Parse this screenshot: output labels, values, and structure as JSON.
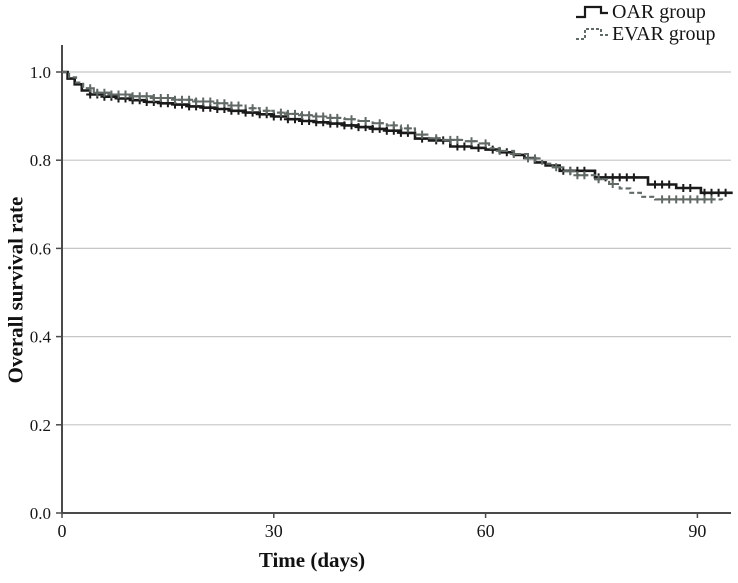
{
  "chart_data": {
    "type": "line",
    "subtype": "kaplan-meier-step-survival",
    "title": "",
    "xlabel": "Time (days)",
    "ylabel": "Overall survival rate",
    "xlim": [
      0,
      95
    ],
    "ylim": [
      0.0,
      1.0
    ],
    "grid": "horizontal-only",
    "legend_position": "top-right",
    "grid_color": "#c6c6c6",
    "axis_color": "#4a4a4a",
    "text_color": "#161616",
    "x_ticks": [
      {
        "value": 0,
        "label": "0"
      },
      {
        "value": 30,
        "label": "30"
      },
      {
        "value": 60,
        "label": "60"
      },
      {
        "value": 90,
        "label": "90"
      }
    ],
    "y_ticks": [
      {
        "value": 0.0,
        "label": "0.0"
      },
      {
        "value": 0.2,
        "label": "0.2"
      },
      {
        "value": 0.4,
        "label": "0.4"
      },
      {
        "value": 0.6,
        "label": "0.6"
      },
      {
        "value": 0.8,
        "label": "0.8"
      },
      {
        "value": 1.0,
        "label": "1.0"
      }
    ],
    "series": [
      {
        "name": "OAR group",
        "color": "#1a1a1a",
        "dash": "solid",
        "points": [
          [
            0,
            1.0
          ],
          [
            0.8,
            0.985
          ],
          [
            1.8,
            0.972
          ],
          [
            2.8,
            0.958
          ],
          [
            4,
            0.949
          ],
          [
            6,
            0.944
          ],
          [
            8,
            0.94
          ],
          [
            10,
            0.936
          ],
          [
            12,
            0.932
          ],
          [
            14,
            0.929
          ],
          [
            16,
            0.926
          ],
          [
            18,
            0.922
          ],
          [
            20,
            0.919
          ],
          [
            22,
            0.916
          ],
          [
            24,
            0.912
          ],
          [
            26,
            0.908
          ],
          [
            28,
            0.904
          ],
          [
            30,
            0.899
          ],
          [
            32,
            0.893
          ],
          [
            34,
            0.889
          ],
          [
            36,
            0.886
          ],
          [
            38,
            0.883
          ],
          [
            40,
            0.879
          ],
          [
            42,
            0.875
          ],
          [
            44,
            0.871
          ],
          [
            46,
            0.867
          ],
          [
            48,
            0.862
          ],
          [
            50,
            0.849
          ],
          [
            52,
            0.845
          ],
          [
            55,
            0.831
          ],
          [
            58,
            0.828
          ],
          [
            60,
            0.824
          ],
          [
            62,
            0.818
          ],
          [
            64,
            0.812
          ],
          [
            65.5,
            0.805
          ],
          [
            67,
            0.795
          ],
          [
            68.5,
            0.788
          ],
          [
            70.5,
            0.776
          ],
          [
            75.5,
            0.761
          ],
          [
            83,
            0.745
          ],
          [
            87,
            0.737
          ],
          [
            90.5,
            0.726
          ],
          [
            95,
            0.726
          ]
        ],
        "censor_days": [
          4,
          5,
          6,
          7,
          8,
          9,
          10,
          11,
          12,
          13,
          14,
          15,
          16,
          17,
          18,
          19,
          20,
          21,
          22,
          23,
          24,
          25,
          26,
          27,
          28,
          29,
          30,
          31,
          32,
          33,
          34,
          35,
          36,
          37,
          38,
          39,
          40,
          41,
          42,
          43,
          44,
          45,
          46,
          47,
          48,
          49,
          51,
          53,
          54,
          56,
          57,
          59,
          61,
          63,
          71,
          72,
          73,
          74,
          76,
          77,
          78,
          79,
          80,
          81,
          84,
          85,
          86,
          88,
          89,
          91,
          92,
          93,
          94
        ]
      },
      {
        "name": "EVAR group",
        "color": "#626a66",
        "dash": "dashed",
        "points": [
          [
            0,
            1.0
          ],
          [
            1,
            0.988
          ],
          [
            2,
            0.976
          ],
          [
            3,
            0.963
          ],
          [
            4.5,
            0.953
          ],
          [
            7,
            0.949
          ],
          [
            10,
            0.945
          ],
          [
            13,
            0.941
          ],
          [
            16,
            0.937
          ],
          [
            19,
            0.933
          ],
          [
            22,
            0.929
          ],
          [
            24,
            0.924
          ],
          [
            26,
            0.918
          ],
          [
            28,
            0.912
          ],
          [
            30,
            0.908
          ],
          [
            32,
            0.905
          ],
          [
            34,
            0.902
          ],
          [
            36,
            0.899
          ],
          [
            38,
            0.896
          ],
          [
            40,
            0.893
          ],
          [
            42,
            0.889
          ],
          [
            44,
            0.884
          ],
          [
            46,
            0.879
          ],
          [
            48,
            0.872
          ],
          [
            50,
            0.858
          ],
          [
            52,
            0.85
          ],
          [
            54,
            0.846
          ],
          [
            57,
            0.843
          ],
          [
            59,
            0.838
          ],
          [
            60.5,
            0.827
          ],
          [
            62,
            0.821
          ],
          [
            64,
            0.814
          ],
          [
            66,
            0.804
          ],
          [
            68,
            0.792
          ],
          [
            69.5,
            0.784
          ],
          [
            71,
            0.775
          ],
          [
            73,
            0.766
          ],
          [
            75.5,
            0.757
          ],
          [
            77.5,
            0.746
          ],
          [
            79,
            0.736
          ],
          [
            80.5,
            0.726
          ],
          [
            82,
            0.717
          ],
          [
            84,
            0.711
          ],
          [
            93.5,
            0.71
          ]
        ],
        "censor_days": [
          4,
          5,
          6,
          7,
          8,
          9,
          10,
          11,
          12,
          13,
          14,
          15,
          16,
          17,
          18,
          19,
          20,
          21,
          22,
          23,
          24,
          25,
          27,
          29,
          31,
          32,
          33,
          34,
          35,
          36,
          37,
          38,
          39,
          41,
          43,
          45,
          47,
          49,
          51,
          53,
          55,
          56,
          58,
          60,
          62,
          64,
          66,
          67,
          70,
          72,
          73,
          74,
          76,
          78,
          85,
          86,
          87,
          88,
          89,
          90,
          91,
          92
        ]
      }
    ]
  },
  "legend": {
    "items": [
      {
        "label": "OAR group"
      },
      {
        "label": "EVAR group"
      }
    ]
  }
}
